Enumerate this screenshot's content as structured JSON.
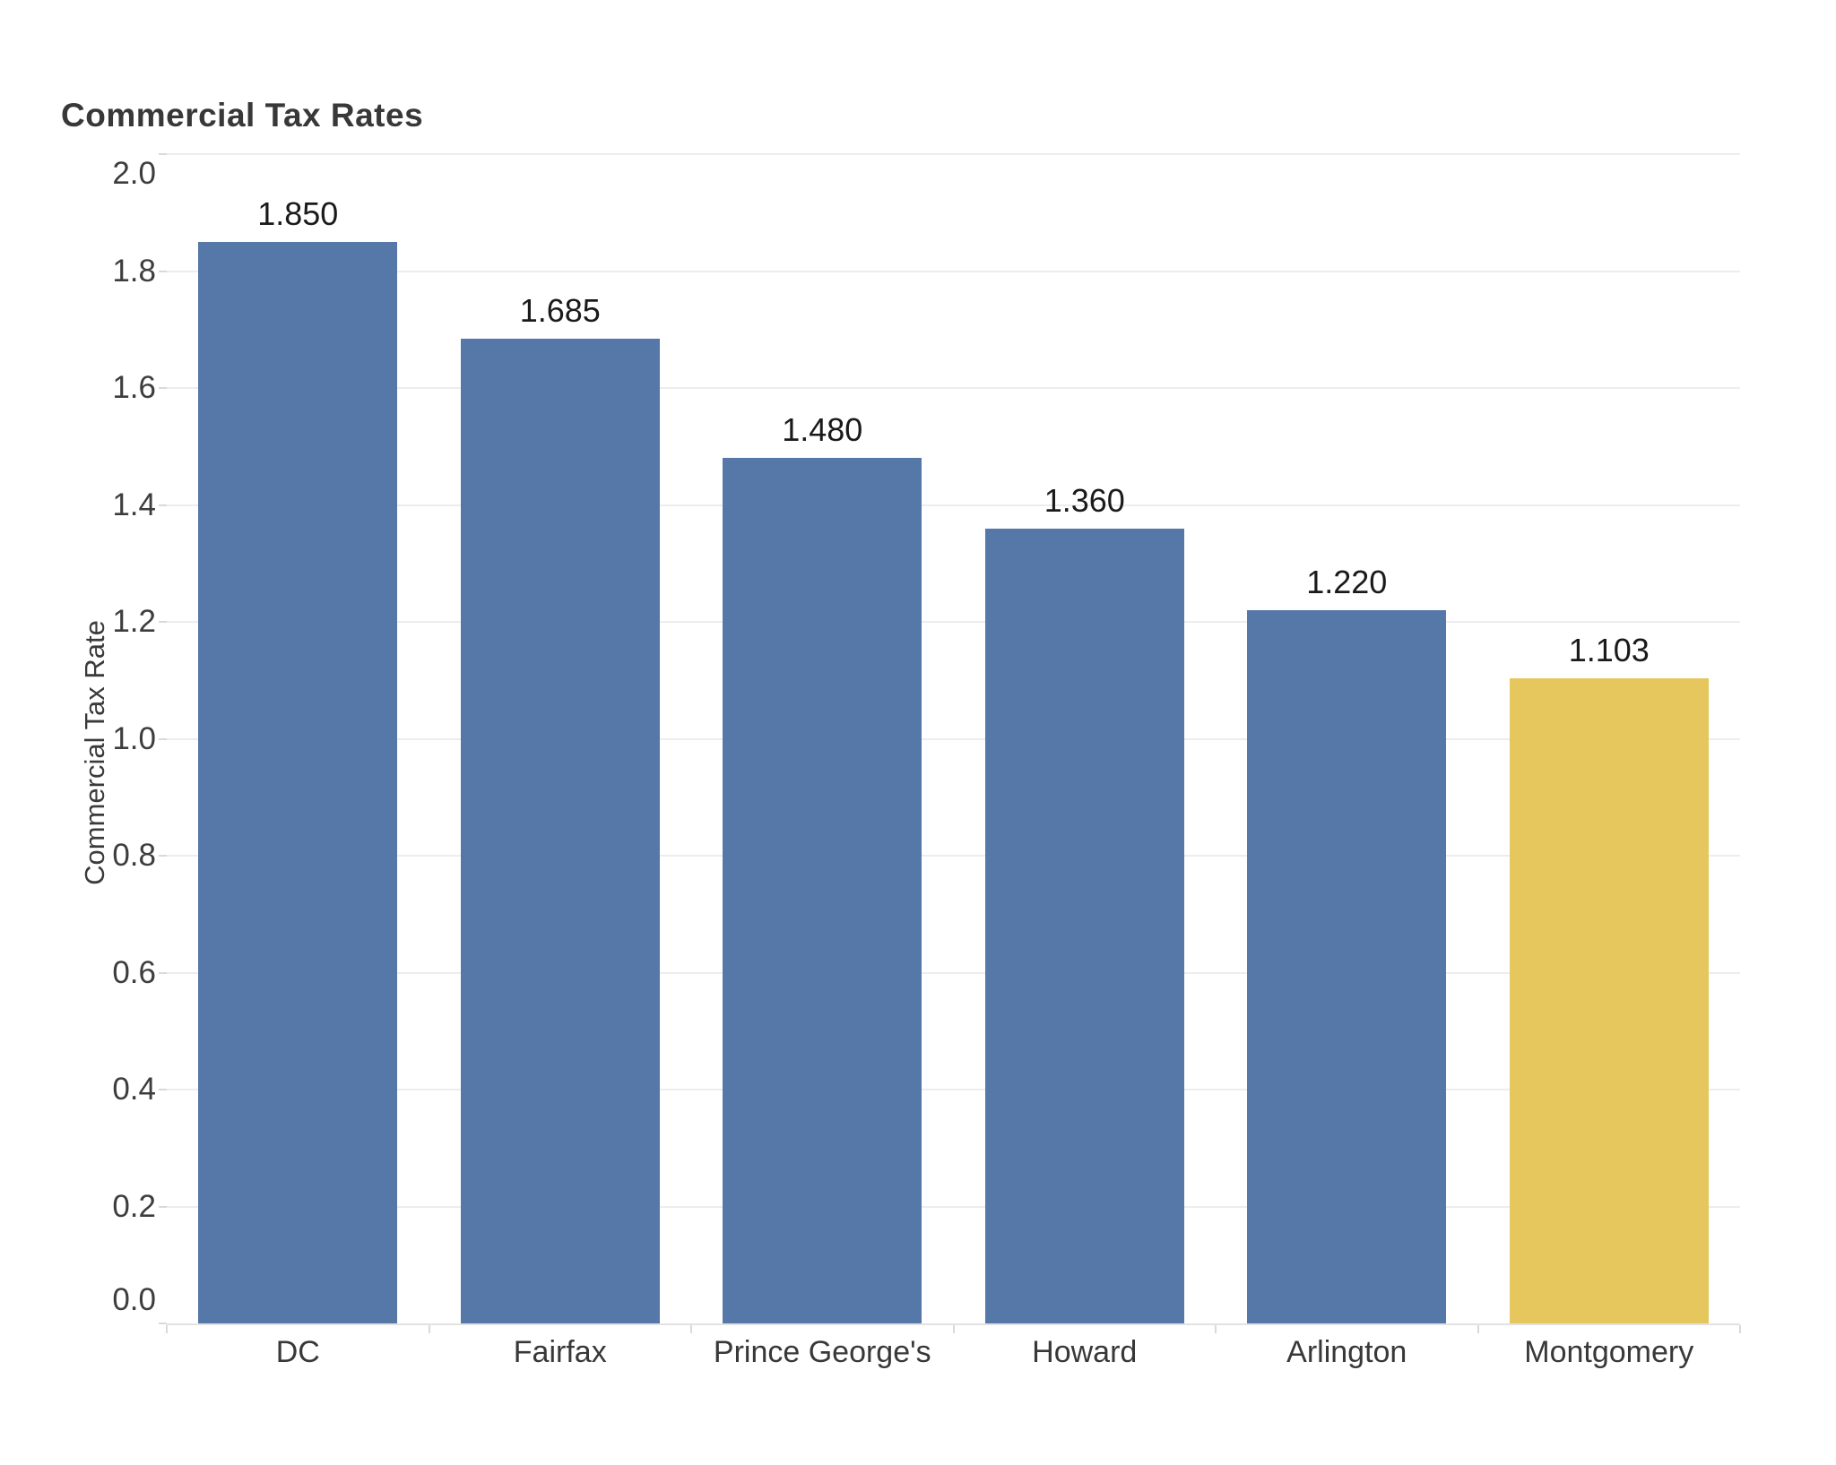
{
  "title": "Commercial Tax Rates",
  "colors": {
    "background": "#ffffff",
    "bar_default": "#5578a8",
    "bar_highlight": "#e6c75e",
    "gridline": "#ededed",
    "axis_line": "#e2e2e2",
    "tick_mark": "#d9d9d9",
    "title_text": "#383838",
    "value_label_text": "#1a1a1a",
    "tick_label_text": "#3d3d3d",
    "category_label_text": "#383838"
  },
  "chart_data": {
    "type": "bar",
    "title": "Commercial Tax Rates",
    "xlabel": "",
    "ylabel": "Commercial Tax Rate",
    "categories": [
      "DC",
      "Fairfax",
      "Prince George's",
      "Howard",
      "Arlington",
      "Montgomery"
    ],
    "values": [
      1.85,
      1.685,
      1.48,
      1.36,
      1.22,
      1.103
    ],
    "value_labels": [
      "1.850",
      "1.685",
      "1.480",
      "1.360",
      "1.220",
      "1.103"
    ],
    "highlight_index": 5,
    "ylim": [
      0.0,
      2.0
    ],
    "ytick_step": 0.2,
    "ytick_labels": [
      "0.0",
      "0.2",
      "0.4",
      "0.6",
      "0.8",
      "1.0",
      "1.2",
      "1.4",
      "1.6",
      "1.8",
      "2.0"
    ],
    "grid": true,
    "legend": false
  }
}
